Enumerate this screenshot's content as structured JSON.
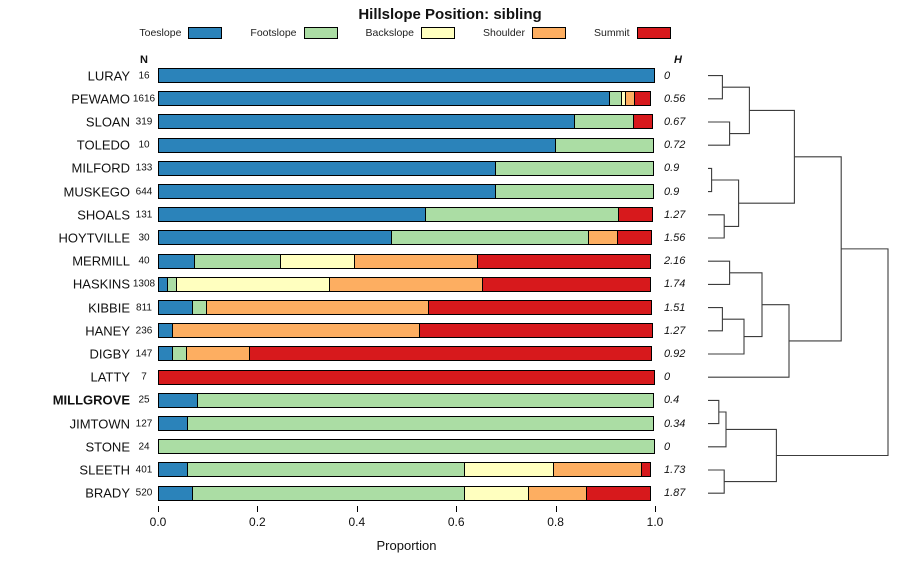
{
  "title": "Hillslope Position: sibling",
  "xlabel": "Proportion",
  "col_headers": {
    "n": "N",
    "h": "H"
  },
  "axis_ticks": [
    "0.0",
    "0.2",
    "0.4",
    "0.6",
    "0.8",
    "1.0"
  ],
  "legend": [
    {
      "label": "Toeslope",
      "color": "#2B83BA"
    },
    {
      "label": "Footslope",
      "color": "#ABDDA4"
    },
    {
      "label": "Backslope",
      "color": "#FFFFBF"
    },
    {
      "label": "Shoulder",
      "color": "#FDAE61"
    },
    {
      "label": "Summit",
      "color": "#D7191C"
    }
  ],
  "chart_data": {
    "type": "bar",
    "orientation": "horizontal-stacked",
    "xlim": [
      0,
      1
    ],
    "title": "Hillslope Position: sibling",
    "xlabel": "Proportion",
    "series_names": [
      "Toeslope",
      "Footslope",
      "Backslope",
      "Shoulder",
      "Summit"
    ],
    "rows": [
      {
        "name": "LURAY",
        "n": 16,
        "h": "0",
        "values": [
          1,
          0,
          0,
          0,
          0
        ]
      },
      {
        "name": "PEWAMO",
        "n": 1616,
        "h": "0.56",
        "values": [
          0.91,
          0.025,
          0.01,
          0.02,
          0.035
        ]
      },
      {
        "name": "SLOAN",
        "n": 319,
        "h": "0.67",
        "values": [
          0.84,
          0.12,
          0,
          0,
          0.04
        ]
      },
      {
        "name": "TOLEDO",
        "n": 10,
        "h": "0.72",
        "values": [
          0.8,
          0.2,
          0,
          0,
          0
        ]
      },
      {
        "name": "MILFORD",
        "n": 133,
        "h": "0.9",
        "values": [
          0.68,
          0.32,
          0,
          0,
          0
        ]
      },
      {
        "name": "MUSKEGO",
        "n": 644,
        "h": "0.9",
        "values": [
          0.68,
          0.32,
          0,
          0,
          0
        ]
      },
      {
        "name": "SHOALS",
        "n": 131,
        "h": "1.27",
        "values": [
          0.54,
          0.39,
          0,
          0,
          0.07
        ]
      },
      {
        "name": "HOYTVILLE",
        "n": 30,
        "h": "1.56",
        "values": [
          0.47,
          0.4,
          0,
          0.06,
          0.07
        ]
      },
      {
        "name": "MERMILL",
        "n": 40,
        "h": "2.16",
        "values": [
          0.075,
          0.175,
          0.15,
          0.25,
          0.35
        ]
      },
      {
        "name": "HASKINS",
        "n": 1308,
        "h": "1.74",
        "values": [
          0.02,
          0.02,
          0.31,
          0.31,
          0.34
        ]
      },
      {
        "name": "KIBBIE",
        "n": 811,
        "h": "1.51",
        "values": [
          0.07,
          0.03,
          0,
          0.45,
          0.45
        ]
      },
      {
        "name": "HANEY",
        "n": 236,
        "h": "1.27",
        "values": [
          0.03,
          0,
          0,
          0.5,
          0.47
        ]
      },
      {
        "name": "DIGBY",
        "n": 147,
        "h": "0.92",
        "values": [
          0.03,
          0.03,
          0,
          0.13,
          0.81
        ]
      },
      {
        "name": "LATTY",
        "n": 7,
        "h": "0",
        "values": [
          0,
          0,
          0,
          0,
          1
        ]
      },
      {
        "name": "MILLGROVE",
        "n": 25,
        "h": "0.4",
        "values": [
          0.08,
          0.92,
          0,
          0,
          0
        ],
        "bold": true
      },
      {
        "name": "JIMTOWN",
        "n": 127,
        "h": "0.34",
        "values": [
          0.06,
          0.94,
          0,
          0,
          0
        ]
      },
      {
        "name": "STONE",
        "n": 24,
        "h": "0",
        "values": [
          0,
          1,
          0,
          0,
          0
        ]
      },
      {
        "name": "SLEETH",
        "n": 401,
        "h": "1.73",
        "values": [
          0.06,
          0.56,
          0.18,
          0.18,
          0.02
        ]
      },
      {
        "name": "BRADY",
        "n": 520,
        "h": "1.87",
        "values": [
          0.07,
          0.55,
          0.13,
          0.12,
          0.13
        ]
      }
    ],
    "dendrogram": {
      "merges": [
        {
          "id": "m1",
          "a": 0,
          "b": 1,
          "h": 0.08
        },
        {
          "id": "m2",
          "a": 2,
          "b": 3,
          "h": 0.12
        },
        {
          "id": "m3",
          "a": "m1",
          "b": "m2",
          "h": 0.23
        },
        {
          "id": "m4",
          "a": 4,
          "b": 5,
          "h": 0.02
        },
        {
          "id": "m5",
          "a": 6,
          "b": 7,
          "h": 0.09
        },
        {
          "id": "m6",
          "a": "m4",
          "b": "m5",
          "h": 0.17
        },
        {
          "id": "m7",
          "a": "m3",
          "b": "m6",
          "h": 0.48
        },
        {
          "id": "m8",
          "a": 8,
          "b": 9,
          "h": 0.12
        },
        {
          "id": "m9",
          "a": 10,
          "b": 11,
          "h": 0.08
        },
        {
          "id": "m10",
          "a": "m9",
          "b": 12,
          "h": 0.2
        },
        {
          "id": "m11",
          "a": "m8",
          "b": "m10",
          "h": 0.3
        },
        {
          "id": "m12",
          "a": "m11",
          "b": 13,
          "h": 0.45
        },
        {
          "id": "m13",
          "a": 14,
          "b": 15,
          "h": 0.06
        },
        {
          "id": "m14",
          "a": "m13",
          "b": 16,
          "h": 0.1
        },
        {
          "id": "m15",
          "a": 17,
          "b": 18,
          "h": 0.09
        },
        {
          "id": "m16",
          "a": "m14",
          "b": "m15",
          "h": 0.38
        },
        {
          "id": "m17",
          "a": "m7",
          "b": "m12",
          "h": 0.74
        },
        {
          "id": "m18",
          "a": "m17",
          "b": "m16",
          "h": 1.0
        }
      ]
    }
  }
}
